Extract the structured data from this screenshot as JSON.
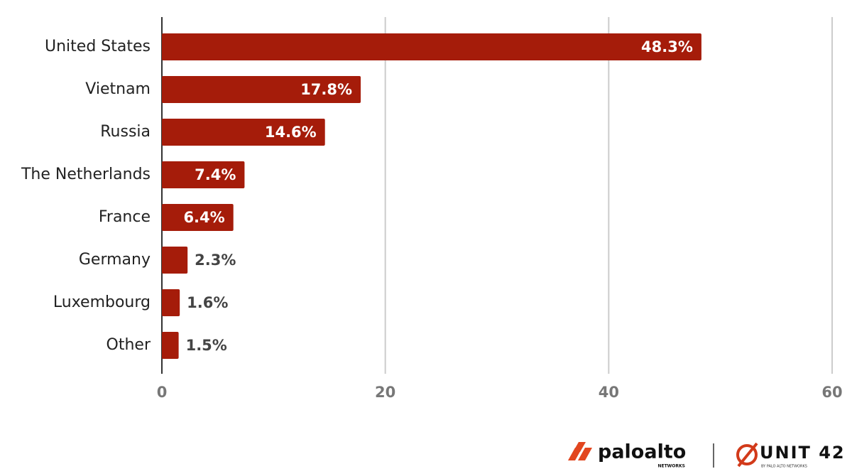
{
  "chart_data": {
    "type": "hbar",
    "categories": [
      "United States",
      "Vietnam",
      "Russia",
      "The Netherlands",
      "France",
      "Germany",
      "Luxembourg",
      "Other"
    ],
    "values": [
      48.3,
      17.8,
      14.6,
      7.4,
      6.4,
      2.3,
      1.6,
      1.5
    ],
    "value_labels": [
      "48.3%",
      "17.8%",
      "14.6%",
      "7.4%",
      "6.4%",
      "2.3%",
      "1.6%",
      "1.5%"
    ],
    "color": "#a51c0a",
    "xlim": [
      0,
      60
    ],
    "xticks": [
      0,
      20,
      40,
      60
    ],
    "grid": true
  },
  "footer": {
    "brand": "paloalto",
    "brand_sub": "NETWORKS",
    "unit": "UNIT 42",
    "unit_sub": "BY PALO ALTO NETWORKS"
  }
}
